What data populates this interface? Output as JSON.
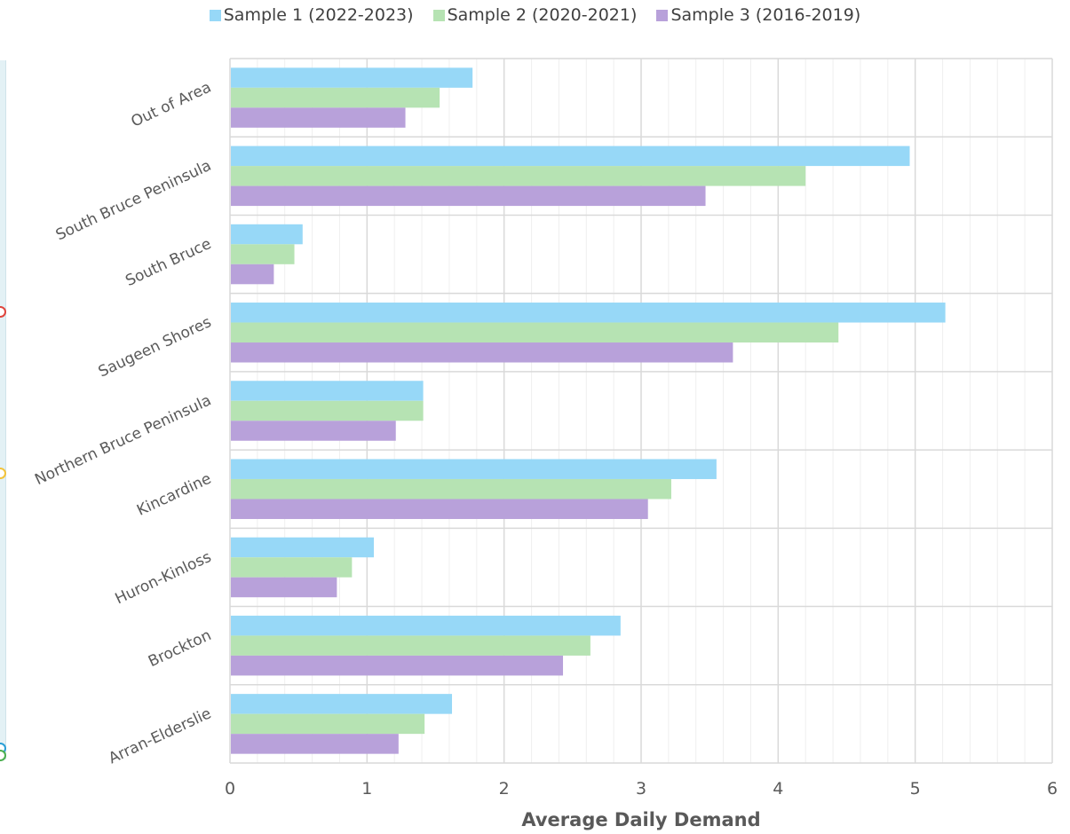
{
  "chart_data": {
    "type": "bar",
    "orientation": "horizontal",
    "categories": [
      "Out of Area",
      "South Bruce Peninsula",
      "South Bruce",
      "Saugeen Shores",
      "Northern Bruce Peninsula",
      "Kincardine",
      "Huron-Kinloss",
      "Brockton",
      "Arran-Elderslie"
    ],
    "series": [
      {
        "name": "Sample 1 (2022-2023)",
        "color": "#97d8f7",
        "values": [
          1.77,
          4.96,
          0.53,
          5.22,
          1.41,
          3.55,
          1.05,
          2.85,
          1.62
        ]
      },
      {
        "name": "Sample 2 (2020-2021)",
        "color": "#b6e3b3",
        "values": [
          1.53,
          4.2,
          0.47,
          4.44,
          1.41,
          3.22,
          0.89,
          2.63,
          1.42
        ]
      },
      {
        "name": "Sample 3 (2016-2019)",
        "color": "#b8a1da",
        "values": [
          1.28,
          3.47,
          0.32,
          3.67,
          1.21,
          3.05,
          0.78,
          2.43,
          1.23
        ]
      }
    ],
    "xlabel": "Average Daily Demand",
    "ylabel": "",
    "xlim": [
      0,
      6
    ],
    "xticks": [
      "0",
      "1",
      "2",
      "3",
      "4",
      "5",
      "6"
    ],
    "grid": true,
    "legend_position": "top"
  },
  "colors": {
    "grid_major": "#d9d9d9",
    "grid_minor": "#efefef",
    "axis_text": "#595959",
    "title_text": "#595959"
  }
}
